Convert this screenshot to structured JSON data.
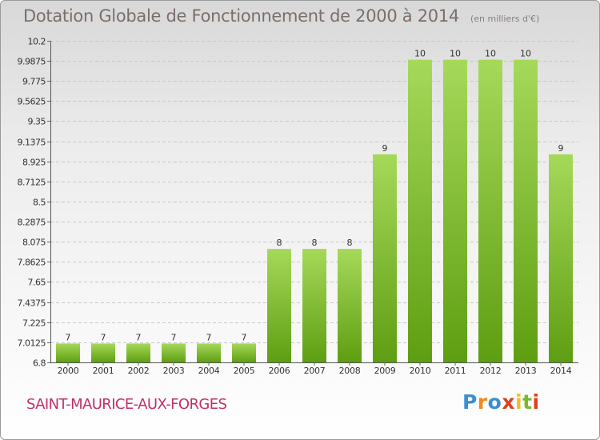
{
  "chart_data": {
    "type": "bar",
    "title": "Dotation Globale de Fonctionnement de 2000 à 2014",
    "subtitle": "(en milliers d'€)",
    "xlabel": "",
    "ylabel": "",
    "categories": [
      "2000",
      "2001",
      "2002",
      "2003",
      "2004",
      "2005",
      "2006",
      "2007",
      "2008",
      "2009",
      "2010",
      "2011",
      "2012",
      "2013",
      "2014"
    ],
    "values": [
      7,
      7,
      7,
      7,
      7,
      7,
      8,
      8,
      8,
      9,
      10,
      10,
      10,
      10,
      9
    ],
    "data_labels": [
      "7",
      "7",
      "7",
      "7",
      "7",
      "7",
      "8",
      "8",
      "8",
      "9",
      "10",
      "10",
      "10",
      "10",
      "9"
    ],
    "ylim": [
      6.8,
      10.2
    ],
    "yticks": [
      6.8,
      7.0125,
      7.225,
      7.4375,
      7.65,
      7.8625,
      8.075,
      8.2875,
      8.5,
      8.7125,
      8.925,
      9.1375,
      9.35,
      9.5625,
      9.775,
      9.9875,
      10.2
    ],
    "ytick_labels": [
      "6.8",
      "7.0125",
      "7.225",
      "7.4375",
      "7.65",
      "7.8625",
      "8.075",
      "8.2875",
      "8.5",
      "8.7125",
      "8.925",
      "9.1375",
      "9.35",
      "9.5625",
      "9.775",
      "9.9875",
      "10.2"
    ],
    "bar_color_light": "#a6d95a",
    "bar_color_dark": "#5e9e12",
    "grid": true
  },
  "commune": "SAINT-MAURICE-AUX-FORGES",
  "logo": {
    "letters": [
      "P",
      "r",
      "o",
      "x",
      "i",
      "t",
      "i"
    ],
    "colors": [
      "#3a8fd0",
      "#f08a1c",
      "#3a8fd0",
      "#e0401c",
      "#f0c020",
      "#7ab830",
      "#e0401c"
    ]
  }
}
